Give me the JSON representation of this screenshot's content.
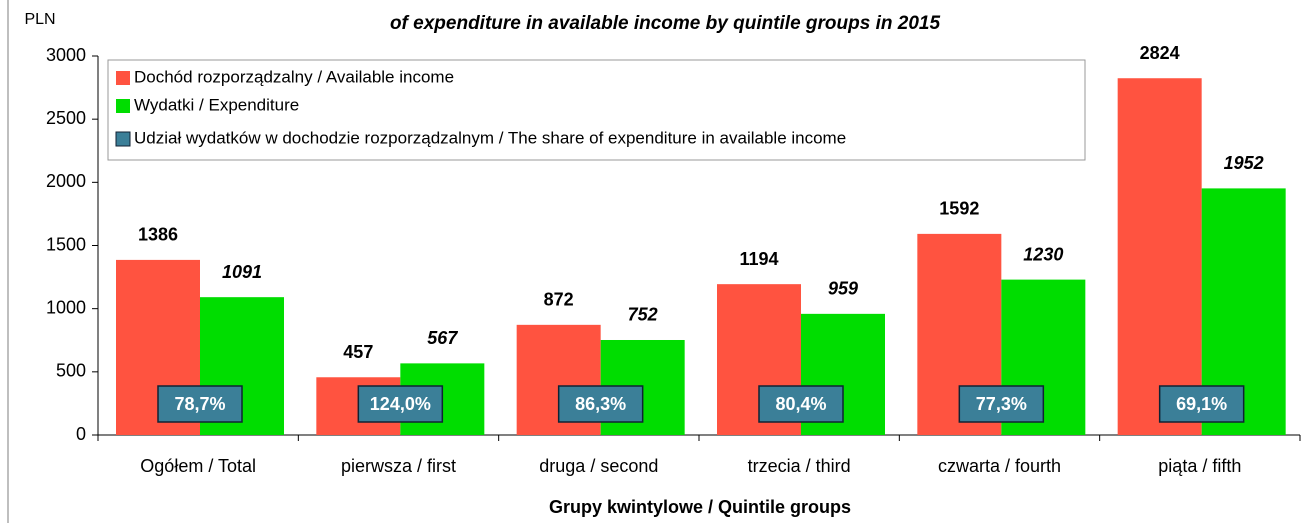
{
  "chart_data": {
    "type": "bar",
    "title": "of expenditure in available income by quintile groups in 2015",
    "y_label": "PLN",
    "x_label": "Grupy kwintylowe / Quintile groups",
    "categories": [
      "Ogółem / Total",
      "pierwsza / first",
      "druga / second",
      "trzecia / third",
      "czwarta / fourth",
      "piąta / fifth"
    ],
    "series": [
      {
        "name": "Dochód rozporządzalny / Available income",
        "color": "#ff5340",
        "values": [
          1386,
          457,
          872,
          1194,
          1592,
          2824
        ]
      },
      {
        "name": "Wydatki / Expenditure",
        "color": "#00dd00",
        "values": [
          1091,
          567,
          752,
          959,
          1230,
          1952
        ]
      },
      {
        "name": "Udział wydatków w dochodzie rozporządzalnym / The share of expenditure in available income",
        "color": "#3b7f98",
        "values": [
          78.7,
          124.0,
          86.3,
          80.4,
          77.3,
          69.1
        ],
        "value_labels": [
          "78,7%",
          "124,0%",
          "86,3%",
          "80,4%",
          "77,3%",
          "69,1%"
        ]
      }
    ],
    "ylim": [
      0,
      3000
    ],
    "yticks": [
      0,
      500,
      1000,
      1500,
      2000,
      2500,
      3000
    ]
  }
}
